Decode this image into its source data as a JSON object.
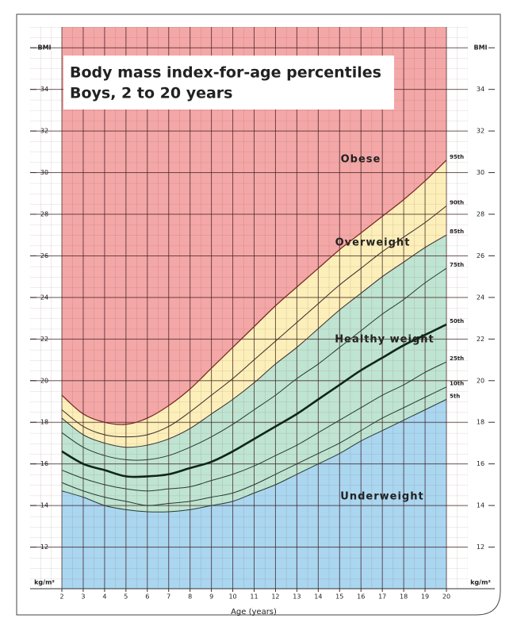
{
  "chart_data": {
    "type": "line",
    "title": "Body mass index-for-age percentiles",
    "subtitle": "Boys, 2 to 20 years",
    "x_label": "Age (years)",
    "x": [
      2,
      3,
      4,
      5,
      6,
      7,
      8,
      9,
      10,
      11,
      12,
      13,
      14,
      15,
      16,
      17,
      18,
      19,
      20
    ],
    "xlim": [
      2,
      20
    ],
    "xticks": [
      2,
      3,
      4,
      5,
      6,
      7,
      8,
      9,
      10,
      11,
      12,
      13,
      14,
      15,
      16,
      17,
      18,
      19,
      20
    ],
    "ylim": [
      10,
      37
    ],
    "yticks": [
      {
        "value": 10,
        "label": "kg/m²"
      },
      12,
      14,
      16,
      18,
      20,
      22,
      24,
      26,
      28,
      30,
      32,
      34,
      {
        "value": 36,
        "label": "BMI"
      }
    ],
    "grid": true,
    "series": [
      {
        "name": "95th",
        "color": "#7a2a2a",
        "line_width": 1.3,
        "values": [
          19.3,
          18.4,
          18.0,
          17.9,
          18.2,
          18.8,
          19.6,
          20.6,
          21.6,
          22.6,
          23.6,
          24.5,
          25.4,
          26.3,
          27.1,
          27.9,
          28.7,
          29.6,
          30.6
        ]
      },
      {
        "name": "90th",
        "color": "#3a2a2a",
        "line_width": 1,
        "values": [
          18.6,
          17.8,
          17.4,
          17.3,
          17.4,
          17.8,
          18.5,
          19.3,
          20.1,
          21.0,
          21.9,
          22.8,
          23.7,
          24.6,
          25.4,
          26.2,
          26.9,
          27.6,
          28.4
        ]
      },
      {
        "name": "85th",
        "color": "#3a2a2a",
        "line_width": 1,
        "values": [
          18.2,
          17.4,
          17.0,
          16.8,
          16.9,
          17.2,
          17.7,
          18.4,
          19.1,
          19.9,
          20.8,
          21.6,
          22.5,
          23.4,
          24.2,
          25.0,
          25.7,
          26.4,
          27.0
        ]
      },
      {
        "name": "75th",
        "color": "#2a3a30",
        "line_width": 1,
        "values": [
          17.5,
          16.8,
          16.4,
          16.2,
          16.2,
          16.4,
          16.8,
          17.3,
          17.9,
          18.6,
          19.3,
          20.1,
          20.8,
          21.6,
          22.4,
          23.2,
          23.9,
          24.7,
          25.4
        ]
      },
      {
        "name": "50th",
        "color": "#10251a",
        "line_width": 2.6,
        "values": [
          16.6,
          16.0,
          15.7,
          15.4,
          15.4,
          15.5,
          15.8,
          16.1,
          16.6,
          17.2,
          17.8,
          18.4,
          19.1,
          19.8,
          20.5,
          21.1,
          21.7,
          22.2,
          22.7
        ]
      },
      {
        "name": "25th",
        "color": "#2a3a30",
        "line_width": 1,
        "values": [
          15.7,
          15.3,
          15.0,
          14.8,
          14.7,
          14.8,
          14.9,
          15.2,
          15.5,
          15.9,
          16.4,
          16.9,
          17.5,
          18.1,
          18.7,
          19.3,
          19.8,
          20.4,
          20.9
        ]
      },
      {
        "name": "10th",
        "color": "#2a3a30",
        "line_width": 1,
        "values": [
          15.1,
          14.7,
          14.4,
          14.2,
          14.0,
          14.1,
          14.2,
          14.4,
          14.6,
          15.0,
          15.5,
          16.0,
          16.5,
          17.0,
          17.6,
          18.2,
          18.7,
          19.2,
          19.7
        ]
      },
      {
        "name": "5th",
        "color": "#2a3a30",
        "line_width": 1,
        "values": [
          14.7,
          14.4,
          14.0,
          13.8,
          13.7,
          13.7,
          13.8,
          14.0,
          14.2,
          14.6,
          15.0,
          15.5,
          16.0,
          16.5,
          17.1,
          17.6,
          18.1,
          18.6,
          19.1
        ]
      }
    ],
    "annotations": [
      {
        "text": "Obese",
        "color": "#f4a7a7"
      },
      {
        "text": "Overweight",
        "color": "#fcefb9"
      },
      {
        "text": "Healthy weight",
        "color": "#bfe4d2"
      },
      {
        "text": "Underweight",
        "color": "#aad6f0"
      }
    ]
  }
}
